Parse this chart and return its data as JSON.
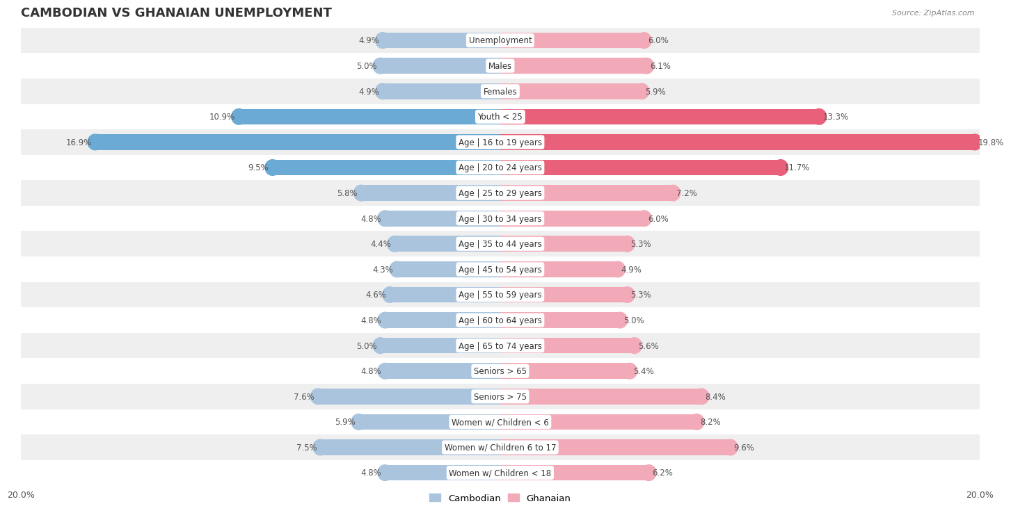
{
  "title": "CAMBODIAN VS GHANAIAN UNEMPLOYMENT",
  "source": "Source: ZipAtlas.com",
  "categories": [
    "Unemployment",
    "Males",
    "Females",
    "Youth < 25",
    "Age | 16 to 19 years",
    "Age | 20 to 24 years",
    "Age | 25 to 29 years",
    "Age | 30 to 34 years",
    "Age | 35 to 44 years",
    "Age | 45 to 54 years",
    "Age | 55 to 59 years",
    "Age | 60 to 64 years",
    "Age | 65 to 74 years",
    "Seniors > 65",
    "Seniors > 75",
    "Women w/ Children < 6",
    "Women w/ Children 6 to 17",
    "Women w/ Children < 18"
  ],
  "cambodian": [
    4.9,
    5.0,
    4.9,
    10.9,
    16.9,
    9.5,
    5.8,
    4.8,
    4.4,
    4.3,
    4.6,
    4.8,
    5.0,
    4.8,
    7.6,
    5.9,
    7.5,
    4.8
  ],
  "ghanaian": [
    6.0,
    6.1,
    5.9,
    13.3,
    19.8,
    11.7,
    7.2,
    6.0,
    5.3,
    4.9,
    5.3,
    5.0,
    5.6,
    5.4,
    8.4,
    8.2,
    9.6,
    6.2
  ],
  "cambodian_color_default": "#aac4de",
  "cambodian_color_highlight": "#6aaad4",
  "ghanaian_color_default": "#f2aab8",
  "ghanaian_color_highlight": "#e8607a",
  "highlight_rows": [
    3,
    4,
    5
  ],
  "xlim": 20.0,
  "bar_height": 0.62,
  "bg_color_odd": "#efefef",
  "bg_color_even": "#ffffff",
  "legend_cambodian_color": "#aac4de",
  "legend_ghanaian_color": "#f2aab8",
  "title_fontsize": 13,
  "label_fontsize": 8.5,
  "value_fontsize": 8.5
}
